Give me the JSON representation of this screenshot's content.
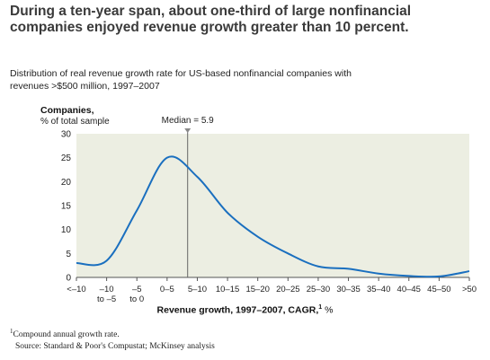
{
  "title": "During a ten-year span, about one-third of large nonfinancial companies enjoyed revenue growth greater than 10 percent.",
  "subtitle": "Distribution of real revenue growth rate for US-based nonfinancial companies with revenues >$500 million, 1997–2007",
  "footnote": {
    "marker": "1",
    "text": "Compound annual growth rate."
  },
  "source": "Source: Standard & Poor's Compustat; McKinsey analysis",
  "chart_data": {
    "type": "line",
    "ylabel": "Companies,",
    "ylabel_sub": "% of total sample",
    "xlabel": "Revenue growth, 1997–2007, CAGR,",
    "xlabel_sup": "1",
    "xlabel_unit": "%",
    "ylim": [
      0,
      30
    ],
    "yticks": [
      0,
      5,
      10,
      15,
      20,
      25,
      30
    ],
    "grid": false,
    "categories": [
      "<–10",
      "–10 to –5",
      "–5 to 0",
      "0–5",
      "5–10",
      "10–15",
      "15–20",
      "20–25",
      "25–30",
      "30–35",
      "35–40",
      "40–45",
      "45–50",
      ">50"
    ],
    "series": [
      {
        "values": [
          3.0,
          3.5,
          14.0,
          25.0,
          21.0,
          13.5,
          8.5,
          5.0,
          2.3,
          1.8,
          0.8,
          0.3,
          0.2,
          1.3
        ]
      }
    ],
    "median": {
      "label": "Median = 5.9",
      "value": 5.9
    },
    "colors": {
      "line": "#1a6fbf",
      "plot_bg": "#eceee2",
      "median_line": "#666666"
    }
  }
}
